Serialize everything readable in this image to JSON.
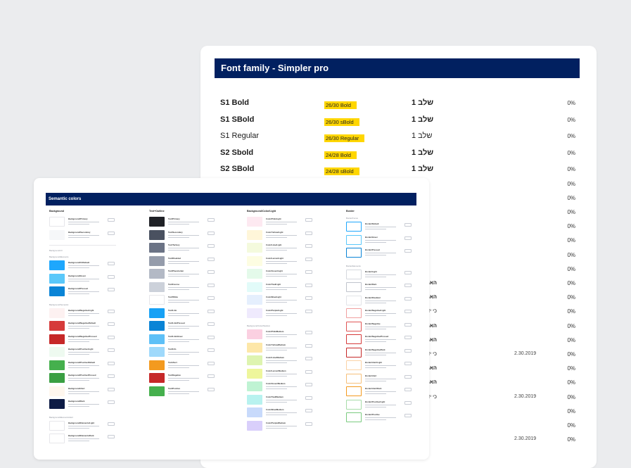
{
  "typography": {
    "title": "Font family - Simpler pro",
    "rows": [
      {
        "name": "S1 Bold",
        "weight": "bold",
        "size": "26/30 Bold",
        "hebrew": "שלב 1",
        "pct": "0%"
      },
      {
        "name": "S1 SBold",
        "weight": "bold",
        "size": "26/30 sBold",
        "hebrew": "שלב 1",
        "pct": "0%"
      },
      {
        "name": "S1 Regular",
        "weight": "regular",
        "size": "26/30 Regular",
        "hebrew": "שלב 1",
        "pct": "0%"
      },
      {
        "name": "S2 Sbold",
        "weight": "bold",
        "size": "24/28 Bold",
        "hebrew": "שלב 1",
        "pct": "0%"
      },
      {
        "name": "S2 SBold",
        "weight": "bold",
        "size": "24/28 sBold",
        "hebrew": "שלב 1",
        "pct": "0%"
      }
    ],
    "extra_rows": [
      {
        "text": "",
        "bold": false,
        "date": "",
        "pct": "0%"
      },
      {
        "text": "",
        "bold": false,
        "date": "",
        "pct": "0%"
      },
      {
        "text": "",
        "bold": false,
        "date": "",
        "pct": "0%"
      },
      {
        "text": "",
        "bold": false,
        "date": "",
        "pct": "0%"
      },
      {
        "text": "",
        "bold": false,
        "date": "",
        "pct": "0%"
      },
      {
        "text": "",
        "bold": false,
        "date": "",
        "pct": "0%"
      },
      {
        "text": "",
        "bold": false,
        "date": "",
        "pct": "0%"
      },
      {
        "text": "האם בלה בו",
        "bold": true,
        "date": "",
        "pct": "0%"
      },
      {
        "text": "האם בלה בו",
        "bold": true,
        "date": "",
        "pct": "0%"
      },
      {
        "text": "כי ידוע שבלה בלה בלה הוא בלה בו",
        "bold": false,
        "date": "",
        "pct": "0%"
      },
      {
        "text": "האם בלה בו",
        "bold": true,
        "date": "",
        "pct": "0%"
      },
      {
        "text": "האם בלה",
        "bold": true,
        "date": "",
        "pct": "0%"
      },
      {
        "text": "כי ידוע שבלה בלה בלה הוא בלה",
        "bold": false,
        "date": "2.30.2019",
        "pct": "0%"
      },
      {
        "text": "האם בלה",
        "bold": true,
        "date": "",
        "pct": "0%"
      },
      {
        "text": "האם בלה",
        "bold": true,
        "date": "",
        "pct": "0%"
      },
      {
        "text": "כי ידוע שבלה בלה הוא בלה",
        "bold": false,
        "date": "2.30.2019",
        "pct": "0%"
      },
      {
        "text": "",
        "bold": false,
        "date": "",
        "pct": "0%"
      },
      {
        "text": "",
        "bold": false,
        "date": "",
        "pct": "0%"
      },
      {
        "text": "",
        "bold": false,
        "date": "2.30.2019",
        "pct": "0%"
      }
    ]
  },
  "semantic": {
    "title": "Semantic colors",
    "columns": [
      {
        "title": "Background",
        "groups": [
          {
            "label": "",
            "items": [
              {
                "color": "#ffffff",
                "name": "Background/Primary",
                "empty": true
              },
              {
                "color": "#f6f7f9",
                "name": "Background/Secondary",
                "empty": false
              }
            ]
          },
          {
            "label": "Background/UI",
            "items": []
          },
          {
            "label": "Background/Elements",
            "items": [
              {
                "color": "#1ea7fd",
                "name": "Background/Ui/Default",
                "empty": false
              },
              {
                "color": "#5ac8fa",
                "name": "Background/Hover",
                "empty": false
              },
              {
                "color": "#0a84d6",
                "name": "Background/Pressed",
                "empty": false
              }
            ]
          },
          {
            "label": "Background/Semantic",
            "items": [
              {
                "color": "#fdf1f1",
                "name": "Background/Negative/Light",
                "empty": false
              },
              {
                "color": "#d63b3b",
                "name": "Background/Negative/Default",
                "empty": false
              },
              {
                "color": "#c62828",
                "name": "Background/Negative/Pressed",
                "empty": false
              },
              {
                "color": "#eefaf0",
                "name": "Background/Positive/Light",
                "empty": false
              },
              {
                "color": "#45b04d",
                "name": "Background/Positive/Default",
                "empty": false
              },
              {
                "color": "#3a9f42",
                "name": "Background/Positive/Pressed",
                "empty": false
              },
              {
                "color": "#fff7ee",
                "name": "Background/Alert",
                "empty": false
              },
              {
                "color": "#0d1b45",
                "name": "Background/Dark",
                "empty": false
              }
            ]
          },
          {
            "label": "Background/Elements/Alert",
            "items": [
              {
                "color": "#ffffff",
                "name": "Background/Elements/Light",
                "empty": true
              },
              {
                "color": "#ffffff",
                "name": "Background/Elements/Dark",
                "empty": true
              }
            ]
          }
        ]
      },
      {
        "title": "Text+Outline",
        "groups": [
          {
            "label": "",
            "items": [
              {
                "color": "#1f2126",
                "name": "Text/Primary",
                "empty": false
              },
              {
                "color": "#4a5160",
                "name": "Text/Secondary",
                "empty": false
              },
              {
                "color": "#6b7385",
                "name": "Text/Tertiary",
                "empty": false
              },
              {
                "color": "#959cab",
                "name": "Text/Disabled",
                "empty": false
              },
              {
                "color": "#b3b9c5",
                "name": "Text/Placeholder",
                "empty": false
              },
              {
                "color": "#ccd1da",
                "name": "Text/Inverse",
                "empty": false
              },
              {
                "color": "#ffffff",
                "name": "Text/White",
                "empty": true
              },
              {
                "color": "#17a1f5",
                "name": "Text/Link",
                "empty": false
              },
              {
                "color": "#0a84d6",
                "name": "Text/Link/Pressed",
                "empty": false
              },
              {
                "color": "#5ec0f7",
                "name": "Text/Link/Hover",
                "empty": false
              },
              {
                "color": "#9fd9fb",
                "name": "Text/Info",
                "empty": false
              },
              {
                "color": "#f39a1f",
                "name": "Text/Alert",
                "empty": false
              },
              {
                "color": "#c62828",
                "name": "Text/Negative",
                "empty": false
              },
              {
                "color": "#45b04d",
                "name": "Text/Positive",
                "empty": false
              }
            ]
          }
        ]
      },
      {
        "title": "Background/Color/Light",
        "groups": [
          {
            "label": "",
            "items": [
              {
                "color": "#fde9f1",
                "name": "Color/Pink/Light",
                "empty": false
              },
              {
                "color": "#fff6d9",
                "name": "Color/Yellow/Light",
                "empty": false
              },
              {
                "color": "#f4fadd",
                "name": "Color/Lime/Light",
                "empty": false
              },
              {
                "color": "#fdfde2",
                "name": "Color/Lemon/Light",
                "empty": false
              },
              {
                "color": "#e4faea",
                "name": "Color/Green/Light",
                "empty": false
              },
              {
                "color": "#e2fbf9",
                "name": "Color/Teal/Light",
                "empty": false
              },
              {
                "color": "#e5effd",
                "name": "Color/Blue/Light",
                "empty": false
              },
              {
                "color": "#efeafd",
                "name": "Color/Purple/Light",
                "empty": false
              }
            ]
          },
          {
            "label": "Background/Color/Medium",
            "items": [
              {
                "color": "#fbd0e1",
                "name": "Color/Pink/Medium",
                "empty": false
              },
              {
                "color": "#fde7a8",
                "name": "Color/Yellow/Medium",
                "empty": false
              },
              {
                "color": "#def4b0",
                "name": "Color/Lime/Medium",
                "empty": false
              },
              {
                "color": "#eef69c",
                "name": "Color/Lemon/Medium",
                "empty": false
              },
              {
                "color": "#bff3d3",
                "name": "Color/Green/Medium",
                "empty": false
              },
              {
                "color": "#b8f2ef",
                "name": "Color/Teal/Medium",
                "empty": false
              },
              {
                "color": "#c8dafb",
                "name": "Color/Blue/Medium",
                "empty": false
              },
              {
                "color": "#d9cffb",
                "name": "Color/Purple/Medium",
                "empty": false
              }
            ]
          }
        ]
      },
      {
        "title": "Border",
        "groups": [
          {
            "label": "Border/Focus",
            "items": [
              {
                "color": "#1ea7fd",
                "name": "Border/Default",
                "outline": true
              },
              {
                "color": "#5ac8fa",
                "name": "Border/Hover",
                "outline": true
              },
              {
                "color": "#0a84d6",
                "name": "Border/Pressed",
                "outline": true
              }
            ]
          },
          {
            "label": "Border/Elements",
            "items": [
              {
                "color": "#d5d8de",
                "name": "Border/Light",
                "outline": true
              },
              {
                "color": "#c0c4cc",
                "name": "Border/Dark",
                "outline": true
              },
              {
                "color": "#e2e4e8",
                "name": "Border/Disabled",
                "outline": true
              }
            ]
          },
          {
            "label": "",
            "items": [
              {
                "color": "#f0a0a0",
                "name": "Border/Negative/Light",
                "outline": true
              },
              {
                "color": "#e05555",
                "name": "Border/Negative",
                "outline": true
              },
              {
                "color": "#d63b3b",
                "name": "Border/Negative/Pressed",
                "outline": true
              },
              {
                "color": "#c62828",
                "name": "Border/Negative/Dark",
                "outline": true
              },
              {
                "color": "#fbd3a6",
                "name": "Border/Alert/Light",
                "outline": true
              },
              {
                "color": "#f7c07a",
                "name": "Border/Alert",
                "outline": true
              },
              {
                "color": "#f39a1f",
                "name": "Border/Alert/Dark",
                "outline": true
              },
              {
                "color": "#a7dca9",
                "name": "Border/Positive/Light",
                "outline": true
              },
              {
                "color": "#7bcb80",
                "name": "Border/Positive",
                "outline": true
              }
            ]
          }
        ]
      }
    ]
  }
}
